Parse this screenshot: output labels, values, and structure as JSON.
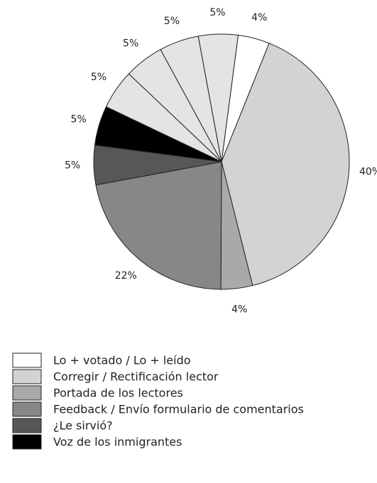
{
  "chart_data": {
    "type": "pie",
    "categories": [
      "Lo + votado / Lo + leído",
      "Corregir / Rectificación lector",
      "Portada de los lectores",
      "Feedback / Envío formulario de comentarios",
      "¿Le sirvió?",
      "Voz de los inmigrantes",
      null,
      null,
      null,
      null
    ],
    "values": [
      4,
      40,
      4,
      22,
      5,
      5,
      5,
      5,
      5,
      5
    ],
    "value_labels": [
      "4%",
      "40%",
      "4%",
      "22%",
      "5%",
      "5%",
      "5%",
      "5%",
      "5%",
      "5%"
    ],
    "colors": [
      "#ffffff",
      "#d3d3d3",
      "#a9a9a9",
      "#878787",
      "#575757",
      "#000000",
      "#e4e4e4",
      "#e4e4e4",
      "#e4e4e4",
      "#e4e4e4"
    ]
  }
}
